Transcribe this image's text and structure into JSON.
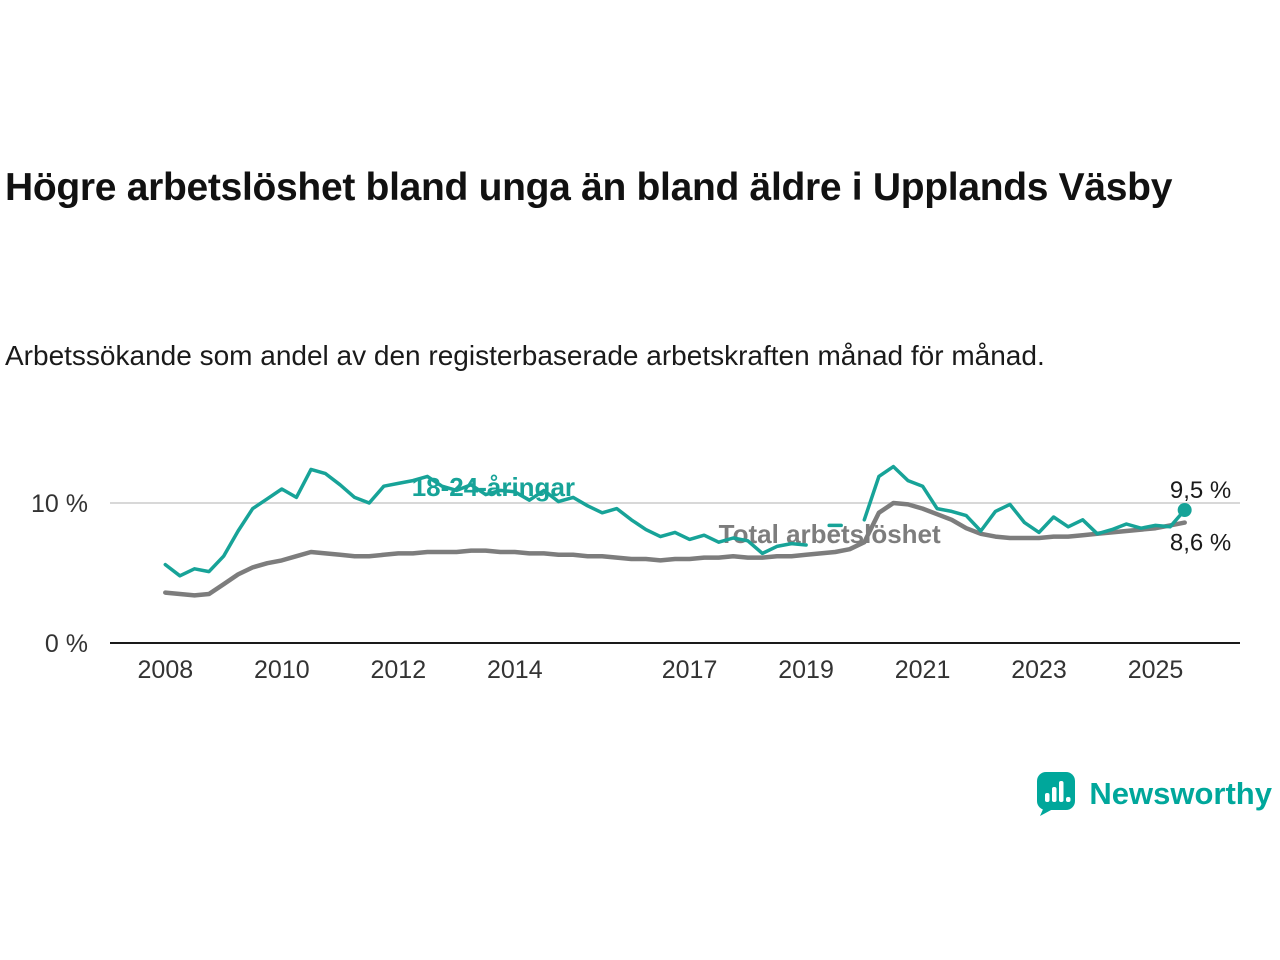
{
  "page": {
    "title": "Högre arbetslöshet bland unga än bland äldre i Upplands Väsby",
    "subtitle": "Arbetssökande som andel av den registerbaserade arbetskraften månad för månad."
  },
  "branding": {
    "name": "Newsworthy",
    "color": "#00a79b",
    "icon": "newsworthy-logo-icon"
  },
  "chart_data": {
    "type": "line",
    "title": "Högre arbetslöshet bland unga än bland äldre i Upplands Väsby",
    "subtitle": "Arbetssökande som andel av den registerbaserade arbetskraften månad för månad.",
    "unit": "%",
    "grid": "horizontal-only",
    "legend_position": "inline-labels",
    "xlim": [
      2007.05,
      2026.45
    ],
    "ylim": [
      0,
      13.5
    ],
    "x_ticks": [
      2008,
      2010,
      2012,
      2014,
      2017,
      2019,
      2021,
      2023,
      2025
    ],
    "y_ticks": [
      {
        "value": 0,
        "label": "0 %",
        "grid": false
      },
      {
        "value": 10,
        "label": "10 %",
        "grid": true
      }
    ],
    "colors": {
      "grid": "#cccccc",
      "axis": "#1a1a1a",
      "tick_label": "#333333",
      "end_label": "#1a1a1a"
    },
    "x": [
      2008,
      2008.25,
      2008.5,
      2008.75,
      2009,
      2009.25,
      2009.5,
      2009.75,
      2010,
      2010.25,
      2010.5,
      2010.75,
      2011,
      2011.25,
      2011.5,
      2011.75,
      2012,
      2012.25,
      2012.5,
      2012.75,
      2013,
      2013.25,
      2013.5,
      2013.75,
      2014,
      2014.25,
      2014.5,
      2014.75,
      2015,
      2015.25,
      2015.5,
      2015.75,
      2016,
      2016.25,
      2016.5,
      2016.75,
      2017,
      2017.25,
      2017.5,
      2017.75,
      2018,
      2018.25,
      2018.5,
      2018.75,
      2019,
      2019.25,
      2019.5,
      2019.75,
      2020,
      2020.25,
      2020.5,
      2020.75,
      2021,
      2021.25,
      2021.5,
      2021.75,
      2022,
      2022.25,
      2022.5,
      2022.75,
      2023,
      2023.25,
      2023.5,
      2023.75,
      2024,
      2024.25,
      2024.5,
      2024.75,
      2025,
      2025.25,
      2025.5
    ],
    "series": [
      {
        "name": "18-24-åringar",
        "color": "#17a398",
        "stroke_width": 3.5,
        "end_dot": true,
        "end_label": "9,5 %",
        "end_label_at": [
          2026.3,
          10.35
        ],
        "label_at": [
          2012.23,
          10.5
        ],
        "values": [
          5.6,
          4.8,
          5.3,
          5.1,
          6.2,
          8.0,
          9.6,
          10.3,
          11.0,
          10.4,
          12.4,
          12.1,
          11.3,
          10.4,
          10.0,
          11.2,
          11.4,
          11.6,
          11.9,
          11.2,
          10.9,
          11.3,
          10.6,
          10.9,
          10.8,
          10.2,
          10.9,
          10.1,
          10.4,
          9.8,
          9.3,
          9.6,
          8.8,
          8.1,
          7.6,
          7.9,
          7.4,
          7.7,
          7.2,
          7.5,
          7.3,
          6.4,
          6.9,
          7.1,
          7.0,
          null,
          8.4,
          null,
          8.8,
          11.9,
          12.6,
          11.6,
          11.2,
          9.6,
          9.4,
          9.1,
          8.0,
          9.4,
          9.9,
          8.6,
          7.9,
          9.0,
          8.3,
          8.8,
          7.8,
          8.1,
          8.5,
          8.2,
          8.4,
          8.3,
          9.5
        ]
      },
      {
        "name": "Total arbetslöshet",
        "color": "#7d7d7d",
        "stroke_width": 4.5,
        "end_dot": false,
        "end_label": "8,6 %",
        "end_label_at": [
          2026.3,
          6.6
        ],
        "label_at": [
          2017.5,
          7.15
        ],
        "values": [
          3.6,
          3.5,
          3.4,
          3.5,
          4.2,
          4.9,
          5.4,
          5.7,
          5.9,
          6.2,
          6.5,
          6.4,
          6.3,
          6.2,
          6.2,
          6.3,
          6.4,
          6.4,
          6.5,
          6.5,
          6.5,
          6.6,
          6.6,
          6.5,
          6.5,
          6.4,
          6.4,
          6.3,
          6.3,
          6.2,
          6.2,
          6.1,
          6.0,
          6.0,
          5.9,
          6.0,
          6.0,
          6.1,
          6.1,
          6.2,
          6.1,
          6.1,
          6.2,
          6.2,
          6.3,
          6.4,
          6.5,
          6.7,
          7.2,
          9.3,
          10.0,
          9.9,
          9.6,
          9.2,
          8.8,
          8.2,
          7.8,
          7.6,
          7.5,
          7.5,
          7.5,
          7.6,
          7.6,
          7.7,
          7.8,
          7.9,
          8.0,
          8.1,
          8.2,
          8.4,
          8.6
        ]
      }
    ]
  }
}
